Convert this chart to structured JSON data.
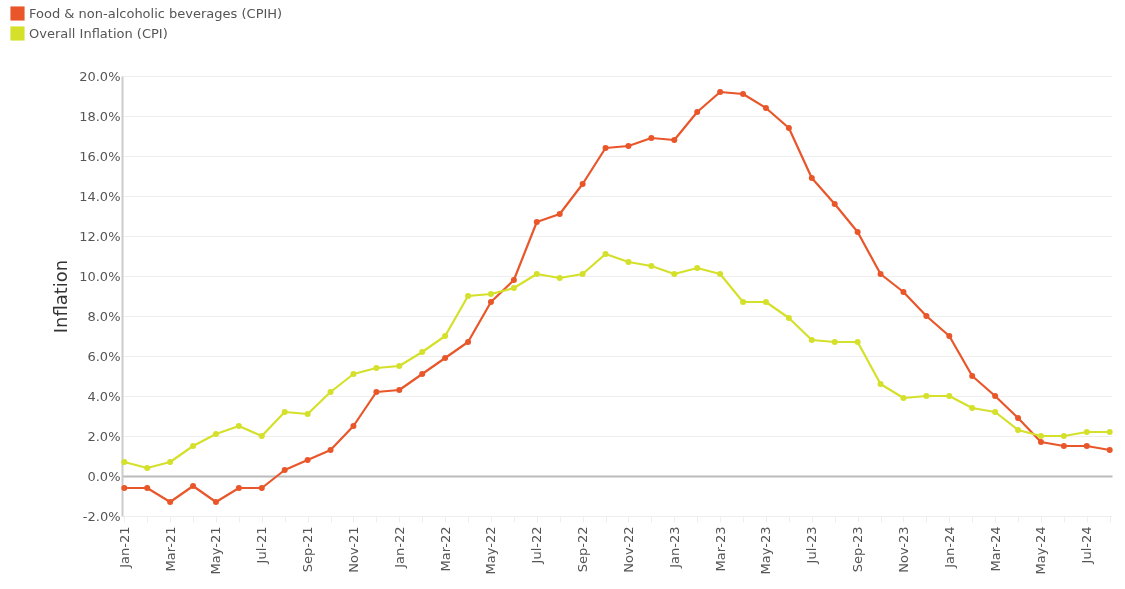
{
  "chart_data": {
    "type": "line",
    "ylabel": "Inflation",
    "categories": [
      "Jan-21",
      null,
      "Mar-21",
      null,
      "May-21",
      null,
      "Jul-21",
      null,
      "Sep-21",
      null,
      "Nov-21",
      null,
      "Jan-22",
      null,
      "Mar-22",
      null,
      "May-22",
      null,
      "Jul-22",
      null,
      "Sep-22",
      null,
      "Nov-22",
      null,
      "Jan-23",
      null,
      "Mar-23",
      null,
      "May-23",
      null,
      "Jul-23",
      null,
      "Sep-23",
      null,
      "Nov-23",
      null,
      "Jan-24",
      null,
      "Mar-24",
      null,
      "May-24",
      null,
      "Jul-24",
      null
    ],
    "series": [
      {
        "name": "Food & non-alcoholic beverages (CPIH)",
        "color": "#e8562a",
        "values": [
          -0.6,
          -0.6,
          -1.3,
          -0.5,
          -1.3,
          -0.6,
          -0.6,
          0.3,
          0.8,
          1.3,
          2.5,
          4.2,
          4.3,
          5.1,
          5.9,
          6.7,
          8.7,
          9.8,
          12.7,
          13.1,
          14.6,
          16.4,
          16.5,
          16.9,
          16.8,
          18.2,
          19.2,
          19.1,
          18.4,
          17.4,
          14.9,
          13.6,
          12.2,
          10.1,
          9.2,
          8.0,
          7.0,
          5.0,
          4.0,
          2.9,
          1.7,
          1.5,
          1.5,
          1.3
        ]
      },
      {
        "name": "Overall Inflation (CPI)",
        "color": "#d4e02a",
        "values": [
          0.7,
          0.4,
          0.7,
          1.5,
          2.1,
          2.5,
          2.0,
          3.2,
          3.1,
          4.2,
          5.1,
          5.4,
          5.5,
          6.2,
          7.0,
          9.0,
          9.1,
          9.4,
          10.1,
          9.9,
          10.1,
          11.1,
          10.7,
          10.5,
          10.1,
          10.4,
          10.1,
          8.7,
          8.7,
          7.9,
          6.8,
          6.7,
          6.7,
          4.6,
          3.9,
          4.0,
          4.0,
          3.4,
          3.2,
          2.3,
          2.0,
          2.0,
          2.2,
          2.2
        ]
      }
    ],
    "ylim": [
      -2,
      20
    ],
    "yticks": [
      {
        "value": -2,
        "label": "-2.0%"
      },
      {
        "value": 0,
        "label": "0.0%"
      },
      {
        "value": 2,
        "label": "2.0%"
      },
      {
        "value": 4,
        "label": "4.0%"
      },
      {
        "value": 6,
        "label": "6.0%"
      },
      {
        "value": 8,
        "label": "8.0%"
      },
      {
        "value": 10,
        "label": "10.0%"
      },
      {
        "value": 12,
        "label": "12.0%"
      },
      {
        "value": 14,
        "label": "14.0%"
      },
      {
        "value": 16,
        "label": "16.0%"
      },
      {
        "value": 18,
        "label": "18.0%"
      },
      {
        "value": 20,
        "label": "20.0%"
      }
    ],
    "grid": "y",
    "legend": "top left",
    "marker": "circle",
    "line_style": "solid"
  }
}
